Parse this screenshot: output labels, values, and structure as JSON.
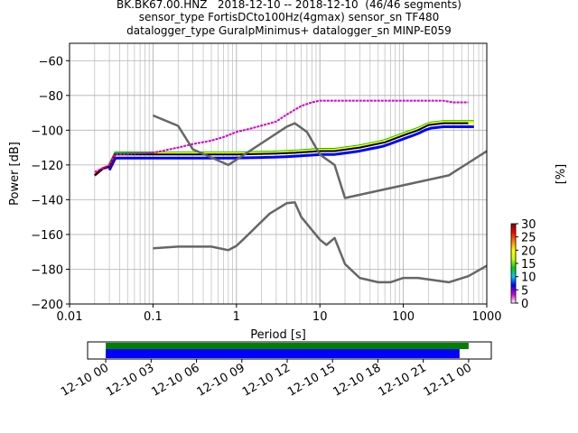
{
  "header": {
    "line1": "BK.BK67.00.HNZ   2018-12-10 -- 2018-12-10  (46/46 segments)",
    "line2": "sensor_type FortisDCto100Hz(4gmax) sensor_sn TF480",
    "line3": "datalogger_type GuralpMinimus+ datalogger_sn MINP-E059"
  },
  "chart_data": [
    {
      "type": "line",
      "xlabel": "Period [s]",
      "ylabel": "Power [dB]",
      "xscale": "log",
      "xlim": [
        0.01,
        1000
      ],
      "ylim": [
        -200,
        -50
      ],
      "x_ticks": [
        "0.01",
        "0.1",
        "1",
        "10",
        "100",
        "1000"
      ],
      "y_ticks": [
        "−200",
        "−180",
        "−160",
        "−140",
        "−120",
        "−100",
        "−80",
        "−60"
      ],
      "grid": true,
      "series": [
        {
          "color": "#000000",
          "points": [
            [
              0.02,
              -126
            ],
            [
              0.025,
              -122
            ],
            [
              0.03,
              -121
            ],
            [
              0.035,
              -114
            ],
            [
              0.1,
              -114
            ],
            [
              0.5,
              -114
            ],
            [
              1,
              -114
            ],
            [
              3,
              -113.5
            ],
            [
              5,
              -113
            ],
            [
              10,
              -112
            ],
            [
              15,
              -112
            ],
            [
              30,
              -110
            ],
            [
              60,
              -107
            ],
            [
              100,
              -103
            ],
            [
              150,
              -100
            ],
            [
              200,
              -97
            ],
            [
              300,
              -96
            ],
            [
              600,
              -96
            ]
          ]
        },
        {
          "color": "#d000d0",
          "points": [
            [
              0.02,
              -124
            ],
            [
              0.03,
              -120
            ],
            [
              0.035,
              -114
            ],
            [
              0.1,
              -113
            ],
            [
              0.2,
              -110
            ],
            [
              0.3,
              -108
            ],
            [
              0.5,
              -106
            ],
            [
              0.7,
              -104
            ],
            [
              1,
              -101
            ],
            [
              1.5,
              -99
            ],
            [
              3,
              -95
            ],
            [
              4,
              -91
            ],
            [
              6,
              -86
            ],
            [
              8,
              -84
            ],
            [
              10,
              -83
            ],
            [
              20,
              -83
            ],
            [
              100,
              -83
            ],
            [
              300,
              -83
            ],
            [
              400,
              -84
            ],
            [
              600,
              -84
            ]
          ]
        },
        {
          "color": "#666666",
          "points": [
            [
              0.1,
              -91.5
            ],
            [
              0.2,
              -97.5
            ],
            [
              0.3,
              -111
            ],
            [
              0.8,
              -120
            ],
            [
              1,
              -117
            ],
            [
              4,
              -98
            ],
            [
              5,
              -96
            ],
            [
              7,
              -101
            ],
            [
              10,
              -114
            ],
            [
              15,
              -120
            ],
            [
              20,
              -139
            ],
            [
              350,
              -126
            ],
            [
              1000,
              -112
            ]
          ]
        },
        {
          "color": "#666666",
          "points": [
            [
              0.1,
              -168
            ],
            [
              0.2,
              -167
            ],
            [
              0.5,
              -167
            ],
            [
              0.8,
              -169
            ],
            [
              1,
              -166.5
            ],
            [
              1.2,
              -163
            ],
            [
              2.5,
              -148
            ],
            [
              4,
              -142
            ],
            [
              5,
              -141.5
            ],
            [
              6,
              -150
            ],
            [
              10,
              -163
            ],
            [
              12,
              -166
            ],
            [
              15,
              -162
            ],
            [
              20,
              -177
            ],
            [
              30,
              -185
            ],
            [
              50,
              -187.5
            ],
            [
              70,
              -187.5
            ],
            [
              100,
              -185
            ],
            [
              150,
              -185
            ],
            [
              350,
              -187.5
            ],
            [
              600,
              -184
            ],
            [
              1000,
              -178
            ]
          ]
        }
      ],
      "histogram_bands": [
        {
          "color": "#0000ff",
          "x": [
            0.03,
            700
          ],
          "offset_db": -2
        },
        {
          "color": "#00c000",
          "x": [
            0.03,
            700
          ],
          "offset_db": 1
        },
        {
          "color": "#ff0000",
          "x": [
            0.02,
            0.035
          ],
          "offset_db": 0
        },
        {
          "color": "#ffff00",
          "x": [
            0.1,
            700
          ],
          "offset_db": 0.5
        }
      ]
    },
    {
      "type": "heatmap",
      "name": "colorbar",
      "ylabel": "[%]",
      "range": [
        0,
        30
      ],
      "ticks": [
        "0",
        "5",
        "10",
        "15",
        "20",
        "25",
        "30"
      ],
      "colors": [
        "#ffffff",
        "#d000d0",
        "#0000ff",
        "#00c8ff",
        "#00d000",
        "#c8ff00",
        "#ffff00",
        "#ff8000",
        "#ff0000",
        "#800000"
      ]
    },
    {
      "type": "bar",
      "name": "data coverage",
      "x_ticks": [
        "12-10 00",
        "12-10 03",
        "12-10 06",
        "12-10 09",
        "12-10 12",
        "12-10 15",
        "12-10 18",
        "12-10 21",
        "12-11 00"
      ],
      "x_hours": [
        0,
        3,
        6,
        9,
        12,
        15,
        18,
        21,
        24
      ],
      "xlim_hours": [
        -1.2,
        25.5
      ],
      "bars": [
        {
          "color": "#008000",
          "start_hours": 0,
          "end_hours": 24.0
        },
        {
          "color": "#0000ff",
          "start_hours": 0,
          "end_hours": 23.4
        }
      ]
    }
  ]
}
